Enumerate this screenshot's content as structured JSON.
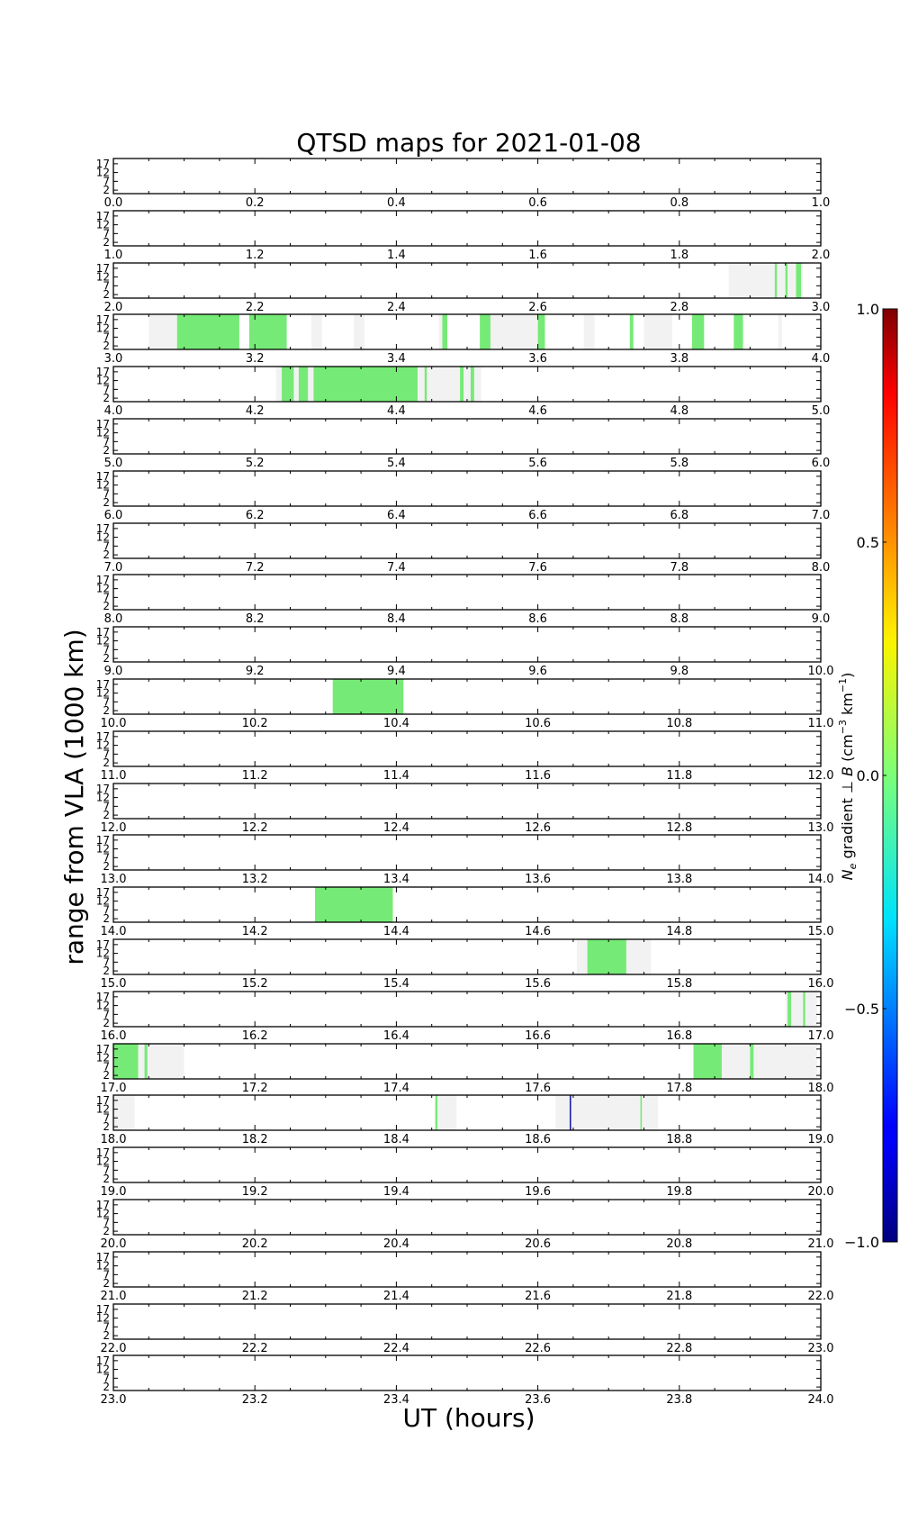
{
  "chart_data": {
    "type": "heatmap",
    "title": "QTSD maps for 2021-01-08",
    "xlabel": "UT (hours)",
    "ylabel": "range from VLA (1000 km)",
    "y_ticks": [
      2,
      7,
      12,
      17
    ],
    "colorbar": {
      "label_parts": [
        "N",
        "e",
        " gradient ⊥ ",
        "B",
        " (cm",
        "−3",
        " km",
        "−1",
        ")"
      ],
      "ticks": [
        "1.0",
        "0.5",
        "0.0",
        "−0.5",
        "−1.0"
      ],
      "range": [
        -1.0,
        1.0
      ],
      "colormap": "jet"
    },
    "colors": {
      "gap": "#f2f2f2",
      "green": "#76ea76",
      "blue": "#1a1aa6",
      "axes": "#000000"
    },
    "panels": [
      {
        "start": 0,
        "gaps": [],
        "green": [],
        "blue": []
      },
      {
        "start": 1,
        "gaps": [],
        "green": [],
        "blue": []
      },
      {
        "start": 2,
        "gaps": [
          [
            2.87,
            2.975
          ]
        ],
        "green": [
          [
            2.935,
            2.938
          ],
          [
            2.95,
            2.953
          ],
          [
            2.965,
            2.972
          ]
        ],
        "blue": []
      },
      {
        "start": 3,
        "gaps": [
          [
            3.05,
            3.09
          ],
          [
            3.28,
            3.295
          ],
          [
            3.34,
            3.355
          ],
          [
            3.46,
            3.47
          ],
          [
            3.53,
            3.6
          ],
          [
            3.665,
            3.68
          ],
          [
            3.75,
            3.79
          ],
          [
            3.94,
            3.945
          ]
        ],
        "green": [
          [
            3.09,
            3.178
          ],
          [
            3.192,
            3.245
          ],
          [
            3.465,
            3.472
          ],
          [
            3.518,
            3.533
          ],
          [
            3.6,
            3.61
          ],
          [
            3.73,
            3.735
          ],
          [
            3.818,
            3.835
          ],
          [
            3.877,
            3.89
          ]
        ],
        "blue": []
      },
      {
        "start": 4,
        "gaps": [
          [
            4.23,
            4.52
          ]
        ],
        "green": [
          [
            4.238,
            4.255
          ],
          [
            4.262,
            4.275
          ],
          [
            4.283,
            4.43
          ],
          [
            4.44,
            4.443
          ],
          [
            4.49,
            4.495
          ],
          [
            4.505,
            4.51
          ]
        ],
        "blue": []
      },
      {
        "start": 5,
        "gaps": [],
        "green": [],
        "blue": []
      },
      {
        "start": 6,
        "gaps": [],
        "green": [],
        "blue": []
      },
      {
        "start": 7,
        "gaps": [],
        "green": [],
        "blue": []
      },
      {
        "start": 8,
        "gaps": [],
        "green": [],
        "blue": []
      },
      {
        "start": 9,
        "gaps": [],
        "green": [],
        "blue": []
      },
      {
        "start": 10,
        "gaps": [],
        "green": [
          [
            10.31,
            10.41
          ]
        ],
        "blue": []
      },
      {
        "start": 11,
        "gaps": [],
        "green": [],
        "blue": []
      },
      {
        "start": 12,
        "gaps": [],
        "green": [],
        "blue": []
      },
      {
        "start": 13,
        "gaps": [],
        "green": [],
        "blue": []
      },
      {
        "start": 14,
        "gaps": [],
        "green": [
          [
            14.285,
            14.395
          ]
        ],
        "blue": []
      },
      {
        "start": 15,
        "gaps": [
          [
            15.655,
            15.76
          ]
        ],
        "green": [
          [
            15.67,
            15.725
          ]
        ],
        "blue": []
      },
      {
        "start": 16,
        "gaps": [
          [
            16.95,
            16.995
          ]
        ],
        "green": [
          [
            16.953,
            16.958
          ],
          [
            16.975,
            16.978
          ]
        ],
        "blue": []
      },
      {
        "start": 17,
        "gaps": [
          [
            17.0,
            17.1
          ],
          [
            17.82,
            17.995
          ]
        ],
        "green": [
          [
            17.0,
            17.035
          ],
          [
            17.044,
            17.048
          ],
          [
            17.82,
            17.86
          ],
          [
            17.9,
            17.905
          ]
        ],
        "blue": []
      },
      {
        "start": 18,
        "gaps": [
          [
            18.0,
            18.03
          ],
          [
            18.455,
            18.485
          ],
          [
            18.625,
            18.77
          ]
        ],
        "green": [
          [
            18.455,
            18.458
          ],
          [
            18.745,
            18.747
          ]
        ],
        "blue": [
          [
            18.645,
            18.647
          ]
        ]
      },
      {
        "start": 19,
        "gaps": [],
        "green": [],
        "blue": []
      },
      {
        "start": 20,
        "gaps": [],
        "green": [],
        "blue": []
      },
      {
        "start": 21,
        "gaps": [],
        "green": [],
        "blue": []
      },
      {
        "start": 22,
        "gaps": [],
        "green": [],
        "blue": []
      },
      {
        "start": 23,
        "gaps": [],
        "green": [],
        "blue": []
      }
    ]
  }
}
